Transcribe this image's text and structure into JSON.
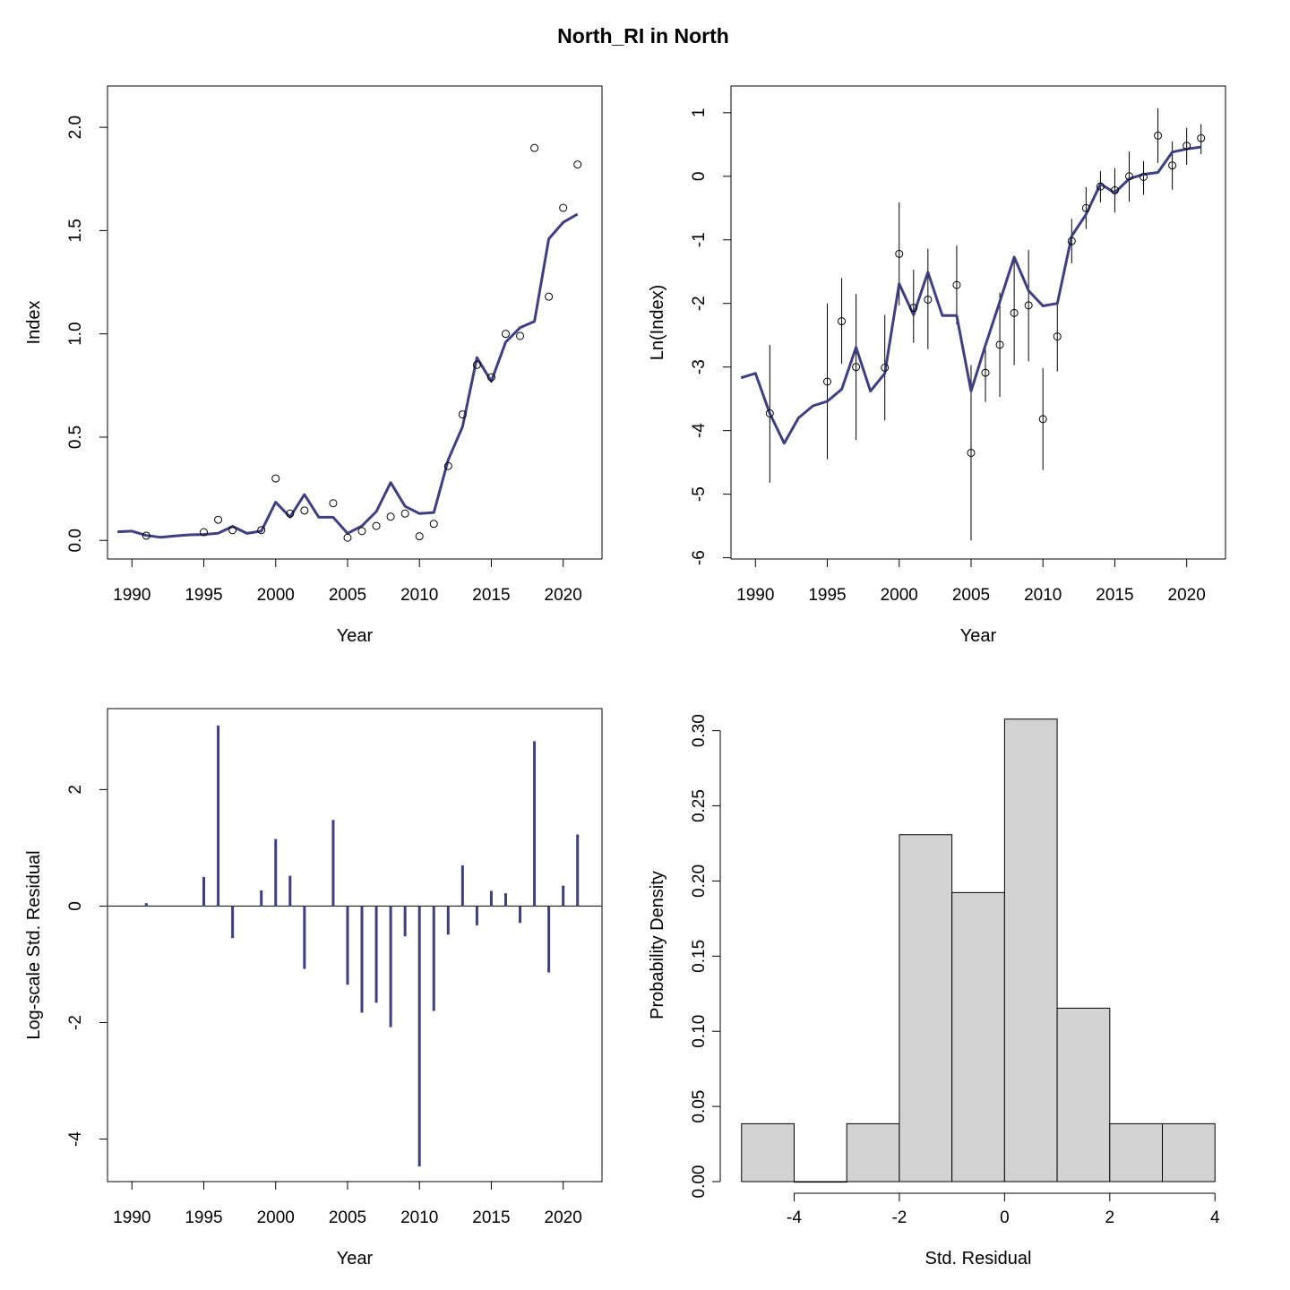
{
  "figure": {
    "title": "North_RI in North"
  },
  "colors": {
    "model": "#3f3f80",
    "ink": "#000000",
    "hist_fill": "#d3d3d3"
  },
  "chart_data": [
    {
      "type": "scatter",
      "panel": "index",
      "xlabel": "Year",
      "ylabel": "Index",
      "xlim": [
        1988.3,
        2022.7
      ],
      "ylim": [
        -0.09,
        2.2
      ],
      "xticks": [
        1990,
        1995,
        2000,
        2005,
        2010,
        2015,
        2020
      ],
      "yticks": [
        0,
        0.5,
        1,
        1.5,
        2
      ],
      "ytick_labels": [
        "0.0",
        "0.5",
        "1.0",
        "1.5",
        "2.0"
      ],
      "model_line": {
        "x": [
          1989,
          1990,
          1991,
          1992,
          1993,
          1994,
          1995,
          1996,
          1997,
          1998,
          1999,
          2000,
          2001,
          2002,
          2003,
          2004,
          2005,
          2006,
          2007,
          2008,
          2009,
          2010,
          2011,
          2012,
          2013,
          2014,
          2015,
          2016,
          2017,
          2018,
          2019,
          2020,
          2021
        ],
        "y": [
          0.042,
          0.045,
          0.024,
          0.015,
          0.022,
          0.027,
          0.029,
          0.035,
          0.068,
          0.034,
          0.045,
          0.185,
          0.113,
          0.222,
          0.112,
          0.112,
          0.034,
          0.07,
          0.14,
          0.28,
          0.165,
          0.13,
          0.135,
          0.39,
          0.55,
          0.885,
          0.77,
          0.96,
          1.03,
          1.06,
          1.46,
          1.54,
          1.58
        ]
      },
      "observed": {
        "x": [
          1991,
          1995,
          1996,
          1997,
          1999,
          2000,
          2001,
          2002,
          2004,
          2005,
          2006,
          2007,
          2008,
          2009,
          2010,
          2011,
          2012,
          2013,
          2014,
          2015,
          2016,
          2017,
          2018,
          2019,
          2020,
          2021
        ],
        "y": [
          0.023,
          0.04,
          0.1,
          0.05,
          0.05,
          0.3,
          0.13,
          0.145,
          0.18,
          0.013,
          0.045,
          0.07,
          0.115,
          0.13,
          0.02,
          0.08,
          0.36,
          0.61,
          0.85,
          0.79,
          1.0,
          0.99,
          1.9,
          1.18,
          1.61,
          1.82
        ]
      }
    },
    {
      "type": "scatter",
      "panel": "log-index",
      "xlabel": "Year",
      "ylabel": "Ln(Index)",
      "xlim": [
        1988.3,
        2022.7
      ],
      "ylim": [
        -6.02,
        1.42
      ],
      "xticks": [
        1990,
        1995,
        2000,
        2005,
        2010,
        2015,
        2020
      ],
      "yticks": [
        -6,
        -5,
        -4,
        -3,
        -2,
        -1,
        0,
        1
      ],
      "ytick_labels": [
        "-6",
        "-5",
        "-4",
        "-3",
        "-2",
        "-1",
        "0",
        "1"
      ],
      "model_line": {
        "x": [
          1989,
          1990,
          1991,
          1992,
          1993,
          1994,
          1995,
          1996,
          1997,
          1998,
          1999,
          2000,
          2001,
          2002,
          2003,
          2004,
          2005,
          2006,
          2007,
          2008,
          2009,
          2010,
          2011,
          2012,
          2013,
          2014,
          2015,
          2016,
          2017,
          2018,
          2019,
          2020,
          2021
        ],
        "y": [
          -3.17,
          -3.1,
          -3.73,
          -4.2,
          -3.8,
          -3.61,
          -3.54,
          -3.35,
          -2.69,
          -3.38,
          -3.1,
          -1.69,
          -2.18,
          -1.51,
          -2.19,
          -2.19,
          -3.38,
          -2.66,
          -1.97,
          -1.27,
          -1.8,
          -2.04,
          -2.0,
          -0.94,
          -0.6,
          -0.12,
          -0.26,
          -0.04,
          0.03,
          0.06,
          0.38,
          0.43,
          0.46
        ]
      },
      "observed": {
        "x": [
          1991,
          1995,
          1996,
          1997,
          1999,
          2000,
          2001,
          2002,
          2004,
          2005,
          2006,
          2007,
          2008,
          2009,
          2010,
          2011,
          2012,
          2013,
          2014,
          2015,
          2016,
          2017,
          2018,
          2019,
          2020,
          2021
        ],
        "y": [
          -3.73,
          -3.23,
          -2.28,
          -3.0,
          -3.01,
          -1.22,
          -2.07,
          -1.94,
          -1.71,
          -4.35,
          -3.09,
          -2.65,
          -2.15,
          -2.03,
          -3.82,
          -2.52,
          -1.02,
          -0.5,
          -0.16,
          -0.22,
          0.0,
          -0.01,
          0.64,
          0.17,
          0.48,
          0.6
        ]
      },
      "error_bars": {
        "x": [
          1991,
          1995,
          1996,
          1997,
          1999,
          2000,
          2001,
          2002,
          2004,
          2005,
          2006,
          2007,
          2008,
          2009,
          2010,
          2011,
          2012,
          2013,
          2014,
          2015,
          2016,
          2017,
          2018,
          2019,
          2020,
          2021
        ],
        "lower": [
          -4.82,
          -4.45,
          -2.95,
          -4.15,
          -3.84,
          -2.03,
          -2.62,
          -2.72,
          -2.33,
          -5.73,
          -3.55,
          -3.47,
          -2.97,
          -2.91,
          -4.62,
          -3.07,
          -1.37,
          -0.83,
          -0.41,
          -0.57,
          -0.4,
          -0.29,
          0.21,
          -0.21,
          0.18,
          0.35
        ],
        "upper": [
          -2.65,
          -2.0,
          -1.6,
          -1.85,
          -2.18,
          -0.41,
          -1.47,
          -1.14,
          -1.09,
          -2.97,
          -2.61,
          -1.83,
          -1.31,
          -1.16,
          -3.02,
          -1.96,
          -0.67,
          -0.17,
          0.08,
          0.13,
          0.39,
          0.24,
          1.07,
          0.55,
          0.76,
          0.82
        ]
      }
    },
    {
      "type": "bar",
      "panel": "residuals",
      "xlabel": "Year",
      "ylabel": "Log-scale Std. Residual",
      "xlim": [
        1988.3,
        2022.7
      ],
      "ylim": [
        -4.73,
        3.39
      ],
      "xticks": [
        1990,
        1995,
        2000,
        2005,
        2010,
        2015,
        2020
      ],
      "yticks": [
        -4,
        -2,
        0,
        2
      ],
      "ytick_labels": [
        "-4",
        "-2",
        "0",
        "2"
      ],
      "x": [
        1991,
        1995,
        1996,
        1997,
        1999,
        2000,
        2001,
        2002,
        2004,
        2005,
        2006,
        2007,
        2008,
        2009,
        2010,
        2011,
        2012,
        2013,
        2014,
        2015,
        2016,
        2017,
        2018,
        2019,
        2020,
        2021
      ],
      "values": [
        0.05,
        0.5,
        3.1,
        -0.55,
        0.27,
        1.15,
        0.52,
        -1.08,
        1.48,
        -1.35,
        -1.83,
        -1.66,
        -2.08,
        -0.52,
        -4.47,
        -1.8,
        -0.49,
        0.7,
        -0.33,
        0.26,
        0.22,
        -0.29,
        2.83,
        -1.14,
        0.35,
        1.23
      ]
    },
    {
      "type": "bar",
      "panel": "histogram",
      "xlabel": "Std. Residual",
      "ylabel": "Probability Density",
      "xlim": [
        -5.2,
        4.2
      ],
      "ylim": [
        0,
        0.3147
      ],
      "xticks": [
        -4,
        -2,
        0,
        2,
        4
      ],
      "xtick_labels": [
        "-4",
        "-2",
        "0",
        "2",
        "4"
      ],
      "yticks": [
        0,
        0.05,
        0.1,
        0.15,
        0.2,
        0.25,
        0.3
      ],
      "ytick_labels": [
        "0.00",
        "0.05",
        "0.10",
        "0.15",
        "0.20",
        "0.25",
        "0.30"
      ],
      "bin_edges": [
        -5,
        -4,
        -3,
        -2,
        -1,
        0,
        1,
        2,
        3,
        4
      ],
      "values": [
        0.0385,
        0,
        0.0385,
        0.2308,
        0.1923,
        0.3077,
        0.1154,
        0.0385,
        0.0385
      ]
    }
  ]
}
